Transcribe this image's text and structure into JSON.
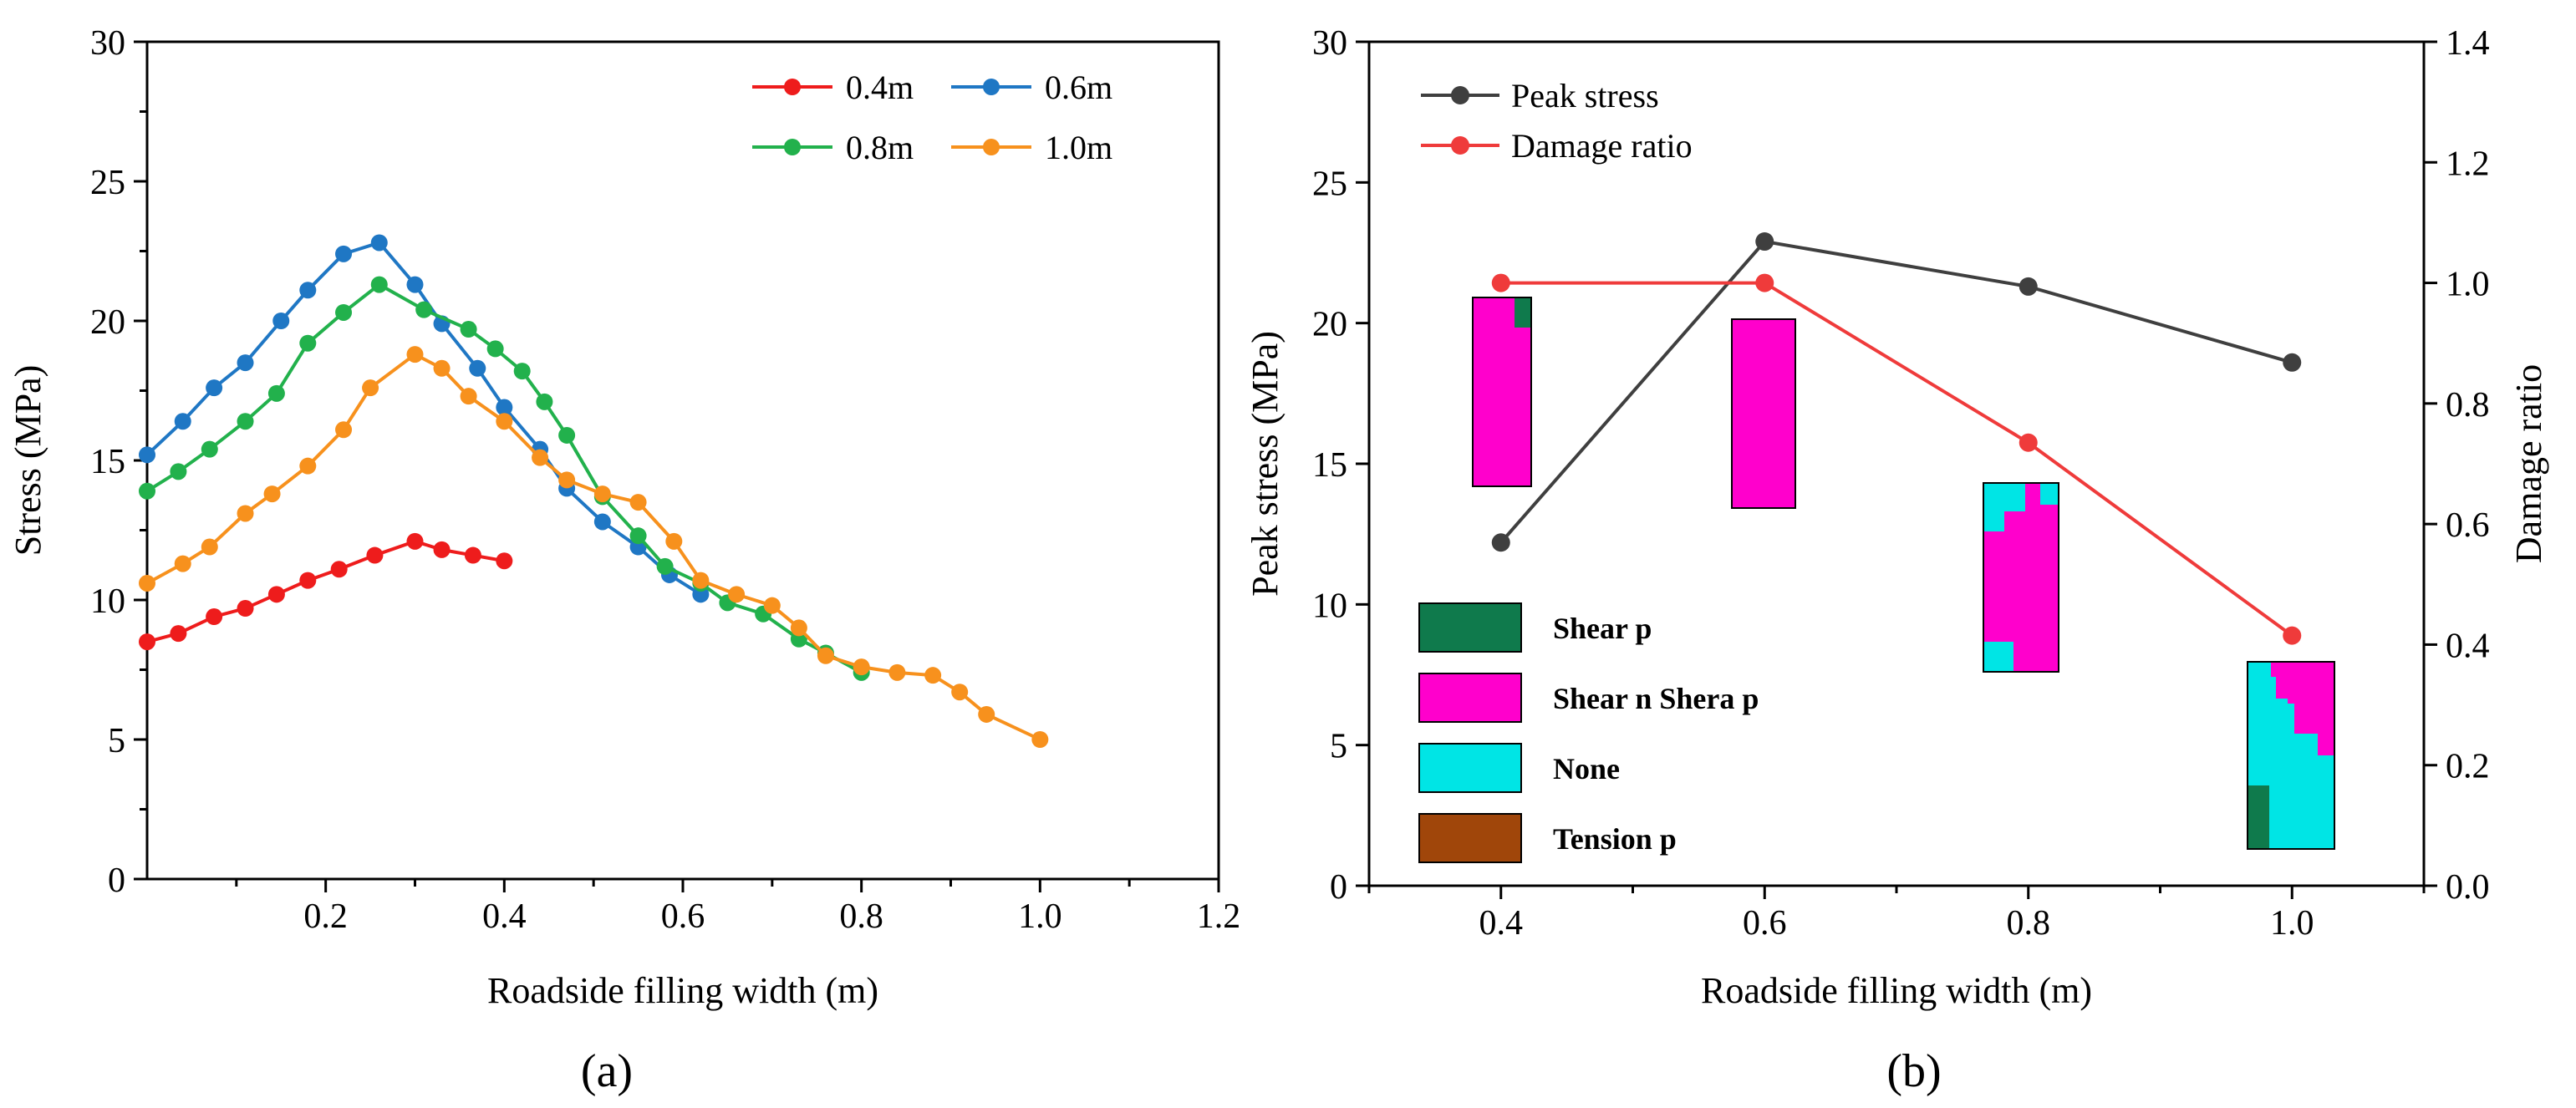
{
  "chart_data": [
    {
      "type": "line",
      "panel_label": "(a)",
      "xlabel": "Roadside filling width (m)",
      "ylabel": "Stress (MPa)",
      "xlim": [
        0,
        1.2
      ],
      "ylim": [
        0,
        30
      ],
      "xticks": [
        0.2,
        0.4,
        0.6,
        0.8,
        1.0,
        1.2
      ],
      "xtick_labels": [
        "0.2",
        "0.4",
        "0.6",
        "0.8",
        "1.0",
        "1.2"
      ],
      "yticks": [
        0,
        5,
        10,
        15,
        20,
        25,
        30
      ],
      "ytick_labels": [
        "0",
        "5",
        "10",
        "15",
        "20",
        "25",
        "30"
      ],
      "legend_position": "top-right",
      "series": [
        {
          "name": "0.4m",
          "color": "#ee1c1c",
          "x": [
            0.0,
            0.035,
            0.075,
            0.11,
            0.145,
            0.18,
            0.215,
            0.255,
            0.3,
            0.33,
            0.365,
            0.4
          ],
          "y": [
            8.5,
            8.8,
            9.4,
            9.7,
            10.2,
            10.7,
            11.1,
            11.6,
            12.1,
            11.8,
            11.6,
            11.4
          ]
        },
        {
          "name": "0.6m",
          "color": "#1f77c4",
          "x": [
            0.0,
            0.04,
            0.075,
            0.11,
            0.15,
            0.18,
            0.22,
            0.26,
            0.3,
            0.33,
            0.37,
            0.4,
            0.44,
            0.47,
            0.51,
            0.55,
            0.585,
            0.62
          ],
          "y": [
            15.2,
            16.4,
            17.6,
            18.5,
            20.0,
            21.1,
            22.4,
            22.8,
            21.3,
            19.9,
            18.3,
            16.9,
            15.4,
            14.0,
            12.8,
            11.9,
            10.9,
            10.2
          ]
        },
        {
          "name": "0.8m",
          "color": "#22b14c",
          "x": [
            0.0,
            0.035,
            0.07,
            0.11,
            0.145,
            0.18,
            0.22,
            0.26,
            0.31,
            0.36,
            0.39,
            0.42,
            0.445,
            0.47,
            0.51,
            0.55,
            0.58,
            0.62,
            0.65,
            0.69,
            0.73,
            0.76,
            0.8
          ],
          "y": [
            13.9,
            14.6,
            15.4,
            16.4,
            17.4,
            19.2,
            20.3,
            21.3,
            20.4,
            19.7,
            19.0,
            18.2,
            17.1,
            15.9,
            13.7,
            12.3,
            11.2,
            10.6,
            9.9,
            9.5,
            8.6,
            8.1,
            7.4
          ]
        },
        {
          "name": "1.0m",
          "color": "#f7911d",
          "x": [
            0.0,
            0.04,
            0.07,
            0.11,
            0.14,
            0.18,
            0.22,
            0.25,
            0.3,
            0.33,
            0.36,
            0.4,
            0.44,
            0.47,
            0.51,
            0.55,
            0.59,
            0.62,
            0.66,
            0.7,
            0.73,
            0.76,
            0.8,
            0.84,
            0.88,
            0.91,
            0.94,
            1.0
          ],
          "y": [
            10.6,
            11.3,
            11.9,
            13.1,
            13.8,
            14.8,
            16.1,
            17.6,
            18.8,
            18.3,
            17.3,
            16.4,
            15.1,
            14.3,
            13.8,
            13.5,
            12.1,
            10.7,
            10.2,
            9.8,
            9.0,
            8.0,
            7.6,
            7.4,
            7.3,
            6.7,
            5.9,
            5.0
          ]
        }
      ]
    },
    {
      "type": "line",
      "panel_label": "(b)",
      "xlabel": "Roadside filling width (m)",
      "ylabel_left": "Peak stress  (MPa)",
      "ylabel_right": "Damage ratio",
      "xlim": [
        0.3,
        1.1
      ],
      "ylim_left": [
        0,
        30
      ],
      "ylim_right": [
        0,
        1.4
      ],
      "xticks": [
        0.4,
        0.6,
        0.8,
        1.0
      ],
      "xtick_labels": [
        "0.4",
        "0.6",
        "0.8",
        "1.0"
      ],
      "yticks_left": [
        0,
        5,
        10,
        15,
        20,
        25,
        30
      ],
      "ytick_labels_left": [
        "0",
        "5",
        "10",
        "15",
        "20",
        "25",
        "30"
      ],
      "yticks_right": [
        0.0,
        0.2,
        0.4,
        0.6,
        0.8,
        1.0,
        1.2,
        1.4
      ],
      "ytick_labels_right": [
        "0.0",
        "0.2",
        "0.4",
        "0.6",
        "0.8",
        "1.0",
        "1.2",
        "1.4"
      ],
      "legend_position": "top-left",
      "series": [
        {
          "name": "Peak stress",
          "axis": "left",
          "color": "#3f3f3f",
          "x": [
            0.4,
            0.6,
            0.8,
            1.0
          ],
          "y": [
            12.2,
            22.9,
            21.3,
            18.6
          ]
        },
        {
          "name": "Damage ratio",
          "axis": "right",
          "color": "#ef3b3b",
          "x": [
            0.4,
            0.6,
            0.8,
            1.0
          ],
          "y": [
            1.0,
            1.0,
            0.735,
            0.415
          ]
        }
      ],
      "failure_legend": [
        {
          "label": "Shear p",
          "color": "#0f7a4c"
        },
        {
          "label": "Shear n Shera p",
          "color": "#ff00cc"
        },
        {
          "label": "None",
          "color": "#00e5e5"
        },
        {
          "label": "Tension p",
          "color": "#a0460a"
        }
      ],
      "failure_zone_insets": [
        {
          "width": "0.4",
          "composition": "mostly Shear n Shera p, small Shear p corner top-right"
        },
        {
          "width": "0.6",
          "composition": "all Shear n Shera p"
        },
        {
          "width": "0.8",
          "composition": "Shear n Shera p core with None patches"
        },
        {
          "width": "1.0",
          "composition": "mostly None, Shear n Shera p upper right, Shear p bottom-left"
        }
      ]
    }
  ]
}
